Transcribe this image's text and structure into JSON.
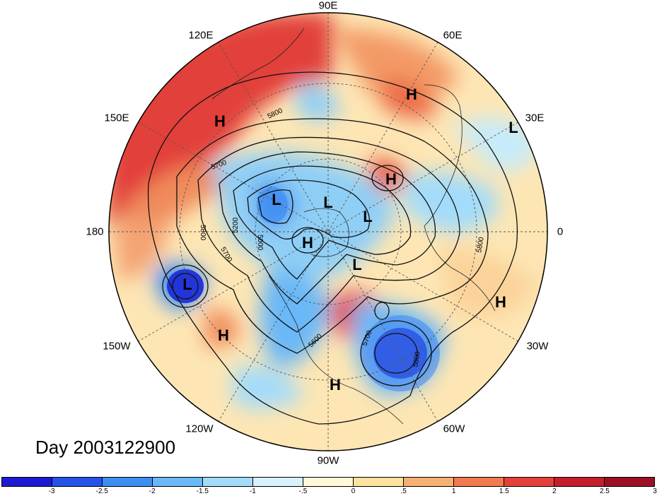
{
  "date_label": "Day 2003122900",
  "lon_labels": [
    "90E",
    "60E",
    "30E",
    "0",
    "30W",
    "60W",
    "90W",
    "120W",
    "150W",
    "180",
    "150E",
    "120E"
  ],
  "contour_labels": [
    "5800",
    "5700",
    "5800",
    "5200",
    "5000",
    "5700",
    "5600",
    "5700",
    "5800",
    "5800"
  ],
  "centers": [
    "H",
    "H",
    "H",
    "L",
    "L",
    "L",
    "L",
    "L",
    "H",
    "L",
    "H",
    "H",
    "H"
  ],
  "colorbar": {
    "colors": [
      "#1d1ad3",
      "#2553e8",
      "#3e8ef2",
      "#6ab8f7",
      "#a3dcfa",
      "#d8f1fb",
      "#fff9d8",
      "#fde2a0",
      "#f8b174",
      "#f27a4f",
      "#e6403a",
      "#c41f2d",
      "#9c0f24"
    ],
    "ticks": [
      "-3",
      "-2.5",
      "-2",
      "-1.5",
      "-1",
      "-.5",
      "0",
      ".5",
      "1",
      "1.5",
      "2",
      "2.5",
      "3"
    ]
  }
}
